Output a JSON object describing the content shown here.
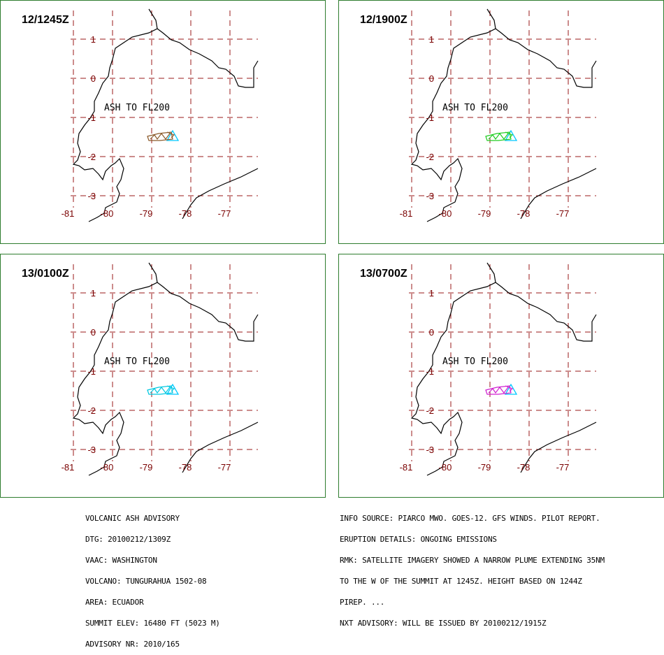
{
  "map": {
    "annotation": "ASH TO FL200",
    "lon_labels": [
      "-81",
      "-80",
      "-79",
      "-78",
      "-77"
    ],
    "lat_labels": [
      "1",
      "0",
      "-1",
      "-2",
      "-3"
    ],
    "colors": {
      "grid": "#9a1a1a",
      "coast": "#000000",
      "border": "#2e7d2e",
      "volcano_marker": "#00c8ff"
    }
  },
  "panels": [
    {
      "time": "12/1245Z",
      "plume_color": "#8b5a2b"
    },
    {
      "time": "12/1900Z",
      "plume_color": "#22cc22"
    },
    {
      "time": "13/0100Z",
      "plume_color": "#00c8e0"
    },
    {
      "time": "13/0700Z",
      "plume_color": "#d020d0"
    }
  ],
  "footer_left": [
    "VOLCANIC ASH ADVISORY",
    "DTG: 20100212/1309Z",
    "VAAC: WASHINGTON",
    "VOLCANO: TUNGURAHUA 1502-08",
    "AREA: ECUADOR",
    "SUMMIT ELEV: 16480 FT (5023 M)",
    "ADVISORY NR: 2010/165"
  ],
  "footer_right": [
    "INFO SOURCE: PIARCO MWO. GOES-12. GFS WINDS. PILOT REPORT.",
    "ERUPTION DETAILS: ONGOING EMISSIONS",
    "RMK: SATELLITE IMAGERY SHOWED A NARROW PLUME EXTENDING 35NM",
    "TO THE W OF THE SUMMIT AT 1245Z. HEIGHT BASED ON 1244Z",
    "PIREP. ...",
    "NXT ADVISORY: WILL BE ISSUED BY 20100212/1915Z"
  ]
}
